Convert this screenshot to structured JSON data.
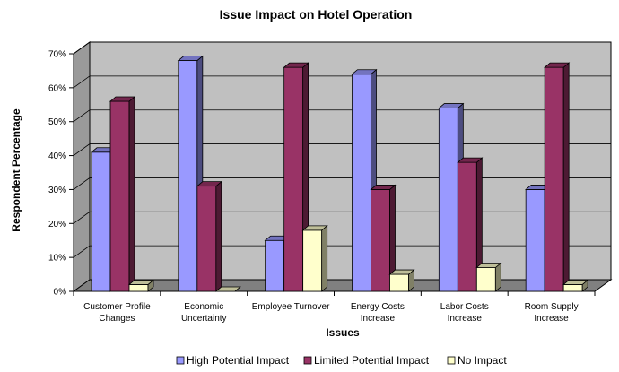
{
  "chart_data": {
    "type": "bar",
    "title": "Issue Impact on Hotel Operation",
    "xlabel": "Issues",
    "ylabel": "Respondent Percentage",
    "ylim": [
      0,
      70
    ],
    "yticks": [
      "0%",
      "10%",
      "20%",
      "30%",
      "40%",
      "50%",
      "60%",
      "70%"
    ],
    "categories": [
      [
        "Customer Profile",
        "Changes"
      ],
      [
        "Economic",
        "Uncertainty"
      ],
      [
        "Employee Turnover"
      ],
      [
        "Energy Costs",
        "Increase"
      ],
      [
        "Labor Costs",
        "Increase"
      ],
      [
        "Room Supply",
        "Increase"
      ]
    ],
    "series": [
      {
        "name": "High Potential Impact",
        "color": "#9999ff",
        "values": [
          41,
          68,
          15,
          64,
          54,
          30
        ]
      },
      {
        "name": "Limited Potential Impact",
        "color": "#993366",
        "values": [
          56,
          31,
          66,
          30,
          38,
          66
        ]
      },
      {
        "name": "No Impact",
        "color": "#ffffcc",
        "values": [
          2,
          0,
          18,
          5,
          7,
          2
        ]
      }
    ],
    "grid": true,
    "legend_position": "bottom",
    "wall_color": "#c0c0c0",
    "floor_color": "#808080"
  }
}
